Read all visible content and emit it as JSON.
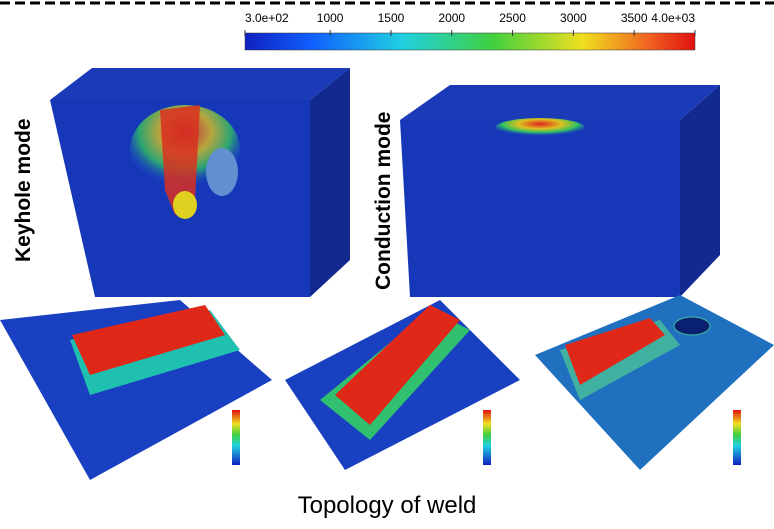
{
  "colorbar": {
    "lim": [
      300,
      4000
    ],
    "ticks": [
      {
        "value": 300,
        "label": "3.0e+02"
      },
      1000,
      1500,
      2000,
      2500,
      3000,
      3500,
      {
        "value": 4000,
        "label": "4.0e+03"
      }
    ]
  },
  "labels": {
    "keyhole": "Keyhole mode",
    "conduction": "Conduction mode",
    "topology": "Topology of weld"
  }
}
